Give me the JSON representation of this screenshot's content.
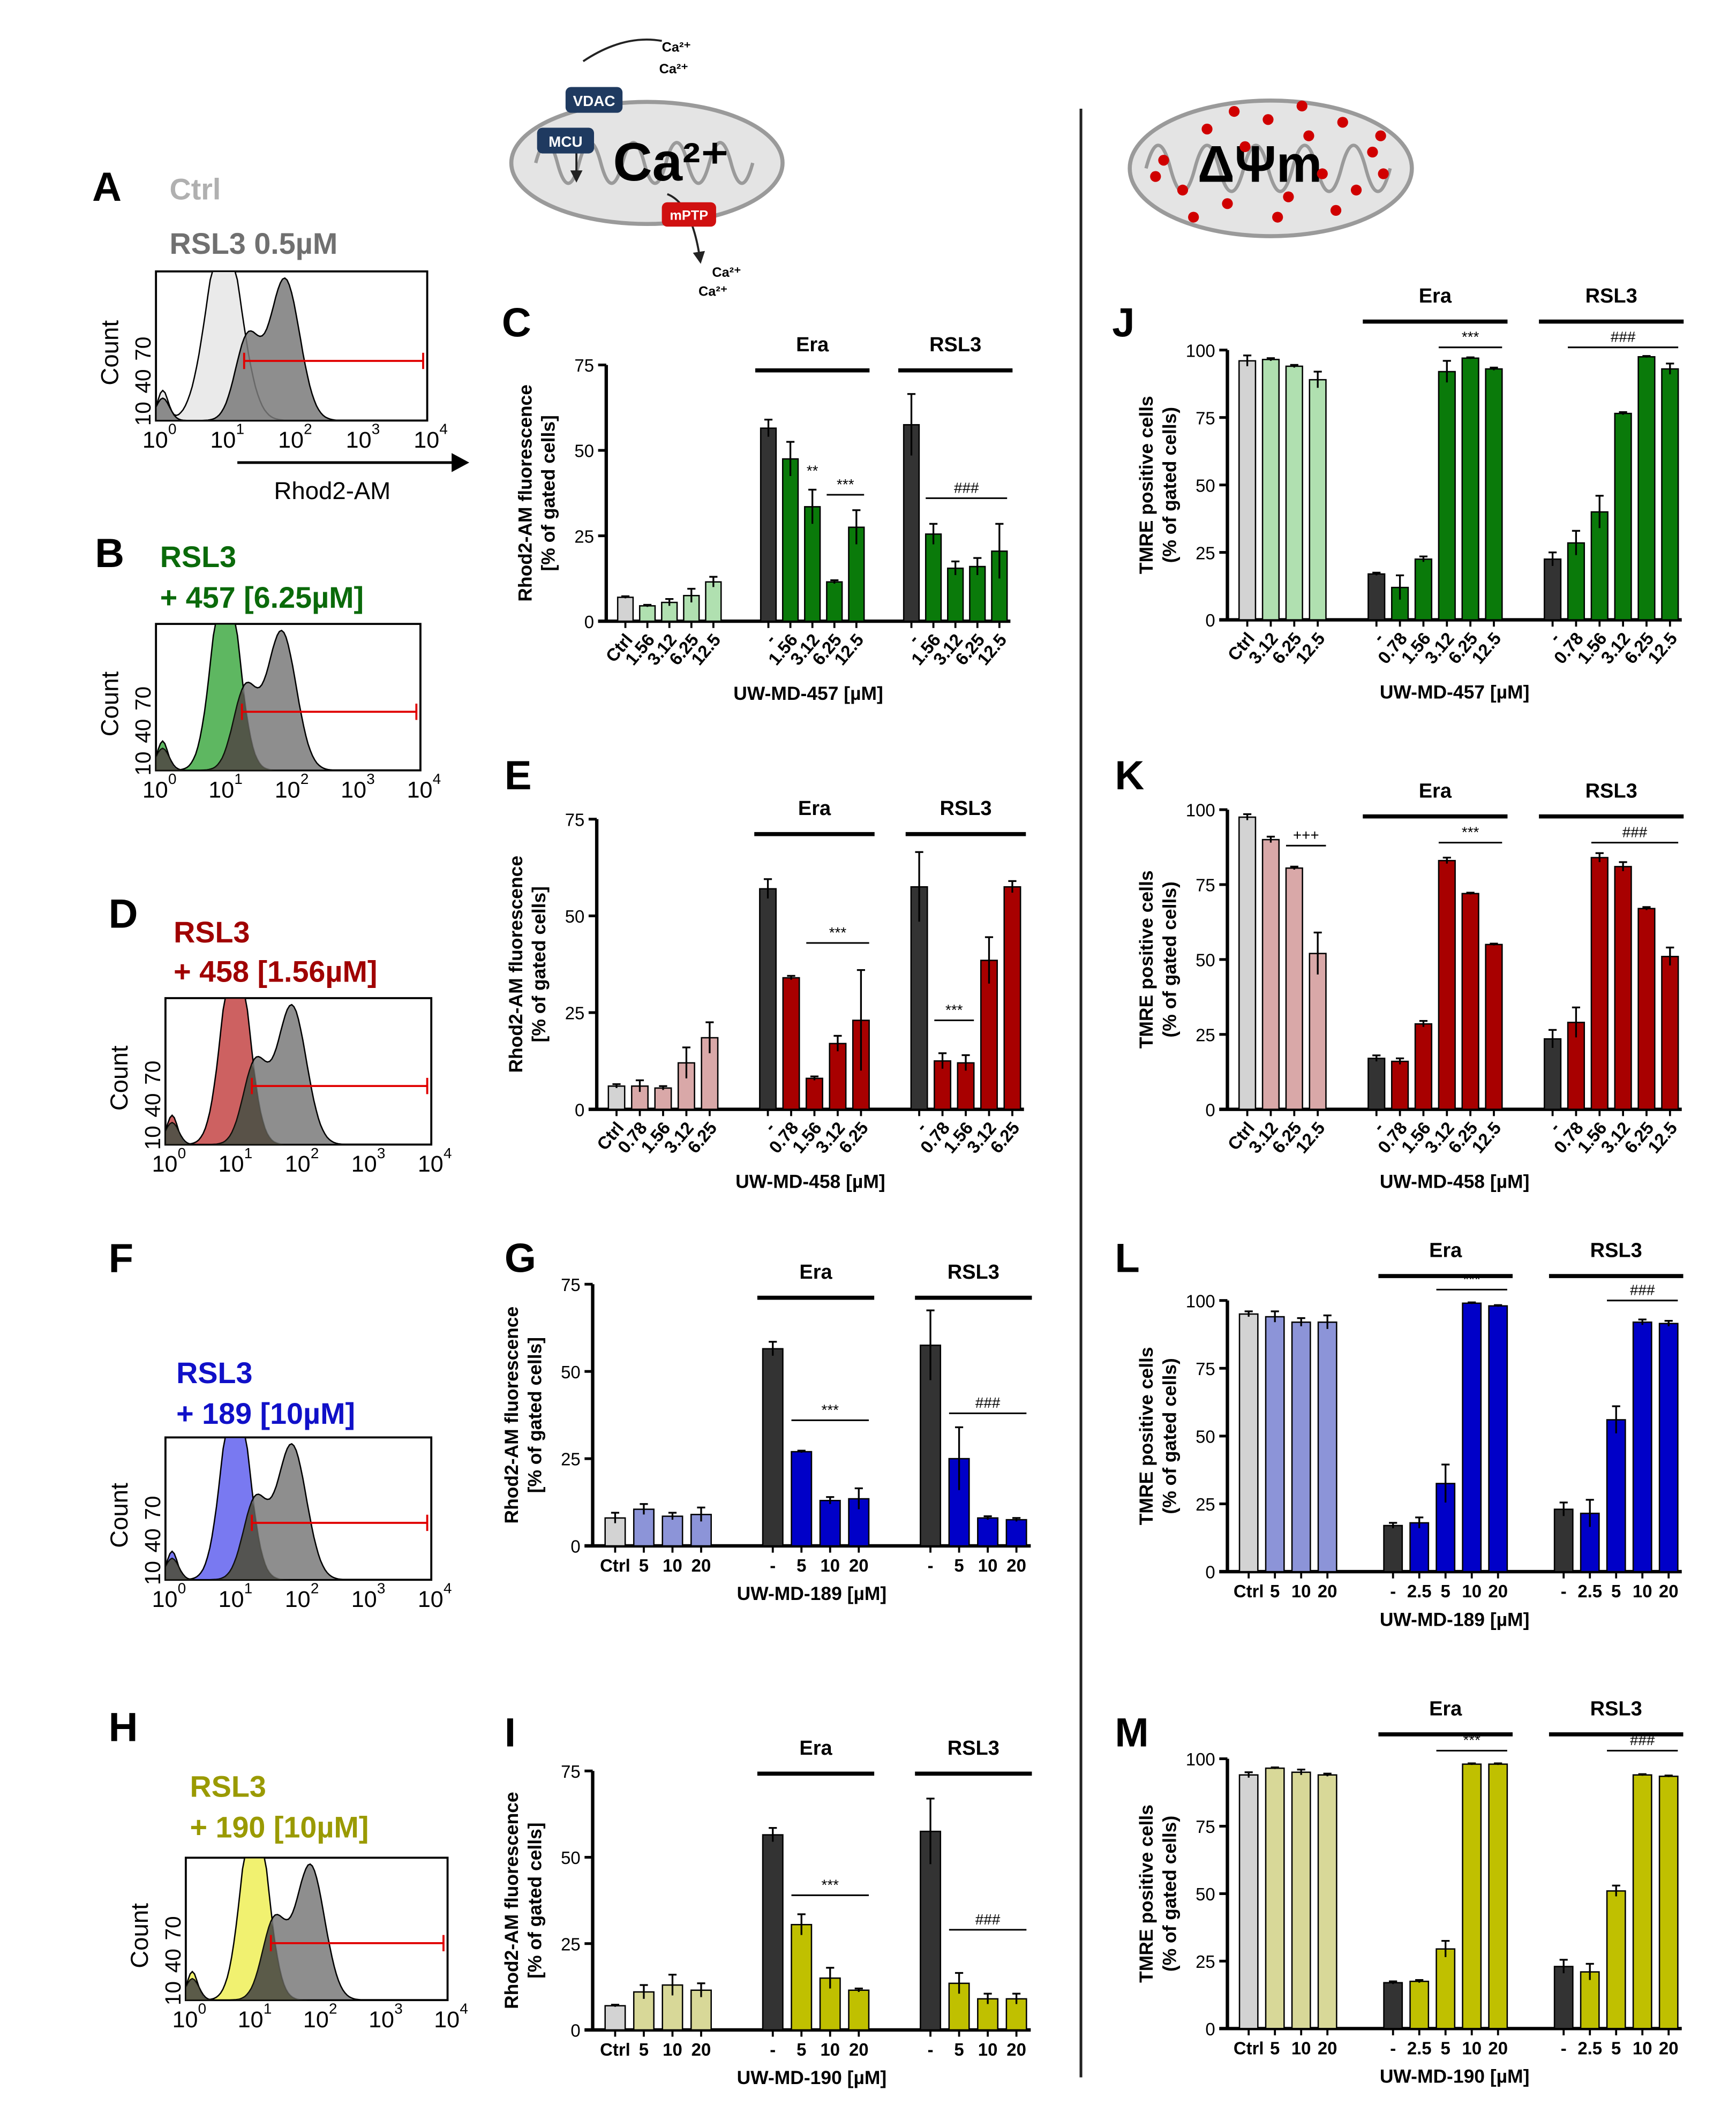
{
  "colors": {
    "ctrl": "#d3d3d3",
    "dark": "#333333",
    "green": "#0a7a0a",
    "green_light": "#b0e0b0",
    "red": "#a80000",
    "red_light": "#d9a8a8",
    "blue": "#0000c8",
    "blue_light": "#8c94d8",
    "olive": "#c0c000",
    "olive_light": "#d8d898",
    "gate": "#e00000",
    "grey_hist": "#7a7a7a"
  },
  "diagram_ca": {
    "vdac": "VDAC",
    "mcu": "MCU",
    "mptp": "mPTP",
    "ca_big": "Ca²⁺",
    "ca_small": [
      "Ca²⁺",
      "Ca²⁺",
      "Ca²⁺",
      "Ca²⁺"
    ]
  },
  "diagram_psi": {
    "label": "ΔΨm"
  },
  "histograms": [
    {
      "panel": "A",
      "title1": "Ctrl",
      "title2": "RSL3 0.5µM",
      "color1": "#b0b0b0",
      "color2": "#707070",
      "fill": "#e8e8e8",
      "ylabel": "Count",
      "yticks": [
        "10",
        "40",
        "70"
      ],
      "xticks": [
        "10",
        "10",
        "10",
        "10",
        "10"
      ],
      "xexp": [
        "0",
        "1",
        "2",
        "3",
        "4"
      ],
      "xaxis": "Rhod2-AM"
    },
    {
      "panel": "B",
      "title1": "RSL3",
      "title2": "+ 457 [6.25µM]",
      "color1": "#0a6a0a",
      "color2": "#0a6a0a",
      "fill": "#4caf50",
      "ylabel": "Count",
      "yticks": [
        "10",
        "40",
        "70"
      ],
      "xticks": [
        "10",
        "10",
        "10",
        "10",
        "10"
      ],
      "xexp": [
        "0",
        "1",
        "2",
        "3",
        "4"
      ]
    },
    {
      "panel": "D",
      "title1": "RSL3",
      "title2": "+ 458 [1.56µM]",
      "color1": "#a00000",
      "color2": "#a00000",
      "fill": "#c85050",
      "ylabel": "Count",
      "yticks": [
        "10",
        "40",
        "70"
      ],
      "xticks": [
        "10",
        "10",
        "10",
        "10",
        "10"
      ],
      "xexp": [
        "0",
        "1",
        "2",
        "3",
        "4"
      ]
    },
    {
      "panel": "F",
      "title1": "RSL3",
      "title2": "+ 189 [10µM]",
      "color1": "#1010c8",
      "color2": "#1010c8",
      "fill": "#6a6af0",
      "ylabel": "Count",
      "yticks": [
        "10",
        "40",
        "70"
      ],
      "xticks": [
        "10",
        "10",
        "10",
        "10",
        "10"
      ],
      "xexp": [
        "0",
        "1",
        "2",
        "3",
        "4"
      ]
    },
    {
      "panel": "H",
      "title1": "RSL3",
      "title2": "+ 190 [10µM]",
      "color1": "#9a9a00",
      "color2": "#9a9a00",
      "fill": "#f0f060",
      "ylabel": "Count",
      "yticks": [
        "10",
        "40",
        "70"
      ],
      "xticks": [
        "10",
        "10",
        "10",
        "10",
        "10"
      ],
      "xexp": [
        "0",
        "1",
        "2",
        "3",
        "4"
      ]
    }
  ],
  "chart_data": [
    {
      "panel": "C",
      "type": "bar",
      "ylabel": [
        "Rhod2-AM fluorescence",
        "[% of gated cells]"
      ],
      "xlabel": "UW-MD-457 [µM]",
      "ylim": [
        0,
        75
      ],
      "yticks": [
        "0",
        "25",
        "50",
        "75"
      ],
      "rotated": true,
      "color": "green",
      "groups": [
        {
          "label": "",
          "categories": [
            "Ctrl",
            "1.56",
            "3.12",
            "6.25",
            "12.5"
          ],
          "values": [
            7,
            4.5,
            5.5,
            7.5,
            11.5
          ],
          "errors": [
            0.3,
            0.3,
            1,
            2,
            1.5
          ]
        },
        {
          "label": "Era",
          "categories": [
            "-",
            "1.56",
            "3.12",
            "6.25",
            "12.5"
          ],
          "values": [
            56.5,
            47.5,
            33.5,
            11.5,
            27.5
          ],
          "errors": [
            2.5,
            5,
            5,
            0.5,
            5
          ]
        },
        {
          "label": "RSL3",
          "categories": [
            "-",
            "1.56",
            "3.12",
            "6.25",
            "12.5"
          ],
          "values": [
            57.5,
            25.5,
            15.5,
            16,
            20.5
          ],
          "errors": [
            9,
            3,
            2,
            2.5,
            8
          ]
        }
      ],
      "annotations": [
        {
          "text": "**",
          "group": 1,
          "from": 2,
          "to": 2,
          "y": 41,
          "line": false
        },
        {
          "text": "***",
          "group": 1,
          "from": 3,
          "to": 4,
          "y": 37,
          "line": true
        },
        {
          "text": "###",
          "group": 2,
          "from": 1,
          "to": 4,
          "y": 36,
          "line": true
        }
      ]
    },
    {
      "panel": "E",
      "type": "bar",
      "ylabel": [
        "Rhod2-AM fluorescence",
        "[% of gated cells]"
      ],
      "xlabel": "UW-MD-458 [µM]",
      "ylim": [
        0,
        75
      ],
      "yticks": [
        "0",
        "25",
        "50",
        "75"
      ],
      "rotated": true,
      "color": "red",
      "groups": [
        {
          "label": "",
          "categories": [
            "Ctrl",
            "0.78",
            "1.56",
            "3.12",
            "6.25"
          ],
          "values": [
            6,
            6,
            5.5,
            12,
            18.5
          ],
          "errors": [
            0.5,
            1.5,
            0.5,
            4,
            4
          ]
        },
        {
          "label": "Era",
          "categories": [
            "-",
            "0.78",
            "1.56",
            "3.12",
            "6.25"
          ],
          "values": [
            57,
            34,
            8,
            17,
            23
          ],
          "errors": [
            2.5,
            0.5,
            0.5,
            2,
            13
          ]
        },
        {
          "label": "RSL3",
          "categories": [
            "-",
            "0.78",
            "1.56",
            "3.12",
            "6.25"
          ],
          "values": [
            57.5,
            12.5,
            12,
            38.5,
            57.5
          ],
          "errors": [
            9,
            2,
            2,
            6,
            1.5
          ]
        }
      ],
      "annotations": [
        {
          "text": "***",
          "group": 1,
          "from": 2,
          "to": 4,
          "y": 43,
          "line": true
        },
        {
          "text": "***",
          "group": 2,
          "from": 1,
          "to": 2,
          "y": 23,
          "line": true
        }
      ]
    },
    {
      "panel": "G",
      "type": "bar",
      "ylabel": [
        "Rhod2-AM fluorescence",
        "[% of gated cells]"
      ],
      "xlabel": "UW-MD-189 [µM]",
      "ylim": [
        0,
        75
      ],
      "yticks": [
        "0",
        "25",
        "50",
        "75"
      ],
      "rotated": false,
      "color": "blue",
      "groups": [
        {
          "label": "",
          "categories": [
            "Ctrl",
            "5",
            "10",
            "20"
          ],
          "values": [
            8,
            10.5,
            8.5,
            9
          ],
          "errors": [
            1.5,
            1.5,
            1,
            2
          ]
        },
        {
          "label": "Era",
          "categories": [
            "-",
            "5",
            "10",
            "20"
          ],
          "values": [
            56.5,
            27,
            13,
            13.5
          ],
          "errors": [
            2,
            0.3,
            1,
            3
          ]
        },
        {
          "label": "RSL3",
          "categories": [
            "-",
            "5",
            "10",
            "20"
          ],
          "values": [
            57.5,
            25,
            8,
            7.5
          ],
          "errors": [
            10,
            9,
            0.5,
            0.5
          ]
        }
      ],
      "annotations": [
        {
          "text": "***",
          "group": 1,
          "from": 1,
          "to": 3,
          "y": 36,
          "line": true
        },
        {
          "text": "###",
          "group": 2,
          "from": 1,
          "to": 3,
          "y": 38,
          "line": true
        }
      ]
    },
    {
      "panel": "I",
      "type": "bar",
      "ylabel": [
        "Rhod2-AM fluorescence",
        "[% of gated cells]"
      ],
      "xlabel": "UW-MD-190 [µM]",
      "ylim": [
        0,
        75
      ],
      "yticks": [
        "0",
        "25",
        "50",
        "75"
      ],
      "rotated": false,
      "color": "olive",
      "groups": [
        {
          "label": "",
          "categories": [
            "Ctrl",
            "5",
            "10",
            "20"
          ],
          "values": [
            7,
            11,
            13,
            11.5
          ],
          "errors": [
            0.3,
            2,
            3,
            2
          ]
        },
        {
          "label": "Era",
          "categories": [
            "-",
            "5",
            "10",
            "20"
          ],
          "values": [
            56.5,
            30.5,
            15,
            11.5
          ],
          "errors": [
            2,
            3,
            3,
            0.5
          ]
        },
        {
          "label": "RSL3",
          "categories": [
            "-",
            "5",
            "10",
            "20"
          ],
          "values": [
            57.5,
            13.5,
            9,
            9
          ],
          "errors": [
            9.5,
            3,
            1.5,
            1.5
          ]
        }
      ],
      "annotations": [
        {
          "text": "***",
          "group": 1,
          "from": 1,
          "to": 3,
          "y": 39,
          "line": true
        },
        {
          "text": "###",
          "group": 2,
          "from": 1,
          "to": 3,
          "y": 29,
          "line": true
        }
      ]
    },
    {
      "panel": "J",
      "type": "bar",
      "ylabel": [
        "TMRE positive cells",
        "(% of gated cells)"
      ],
      "xlabel": "UW-MD-457 [µM]",
      "ylim": [
        0,
        100
      ],
      "yticks": [
        "0",
        "25",
        "50",
        "75",
        "100"
      ],
      "rotated": true,
      "color": "green",
      "groups": [
        {
          "label": "",
          "categories": [
            "Ctrl",
            "3.12",
            "6.25",
            "12.5"
          ],
          "values": [
            96,
            96.5,
            94,
            89
          ],
          "errors": [
            2,
            0.5,
            0.5,
            3
          ]
        },
        {
          "label": "Era",
          "categories": [
            "-",
            "0.78",
            "1.56",
            "3.12",
            "6.25",
            "12.5"
          ],
          "values": [
            17,
            12,
            22.5,
            92,
            97,
            93
          ],
          "errors": [
            0.5,
            4.5,
            1,
            4,
            0.3,
            0.5
          ]
        },
        {
          "label": "RSL3",
          "categories": [
            "-",
            "0.78",
            "1.56",
            "3.12",
            "6.25",
            "12.5"
          ],
          "values": [
            22.5,
            28.5,
            40,
            76.5,
            97.5,
            93
          ],
          "errors": [
            2.5,
            4.5,
            6,
            0.5,
            0.3,
            2
          ]
        }
      ],
      "annotations": [
        {
          "text": "***",
          "group": 1,
          "from": 3,
          "to": 5,
          "y": 101,
          "line": true
        },
        {
          "text": "###",
          "group": 2,
          "from": 1,
          "to": 5,
          "y": 101,
          "line": true
        }
      ]
    },
    {
      "panel": "K",
      "type": "bar",
      "ylabel": [
        "TMRE positive cells",
        "(% of gated cells)"
      ],
      "xlabel": "UW-MD-458 [µM]",
      "ylim": [
        0,
        100
      ],
      "yticks": [
        "0",
        "25",
        "50",
        "75",
        "100"
      ],
      "rotated": true,
      "color": "red",
      "groups": [
        {
          "label": "",
          "categories": [
            "Ctrl",
            "3.12",
            "6.25",
            "12.5"
          ],
          "values": [
            97.5,
            90,
            80.5,
            52
          ],
          "errors": [
            1,
            1,
            0.5,
            7
          ]
        },
        {
          "label": "Era",
          "categories": [
            "-",
            "0.78",
            "1.56",
            "3.12",
            "6.25",
            "12.5"
          ],
          "values": [
            17,
            16,
            28.5,
            83,
            72,
            55
          ],
          "errors": [
            1,
            1,
            1,
            1,
            0.3,
            0.3
          ]
        },
        {
          "label": "RSL3",
          "categories": [
            "-",
            "0.78",
            "1.56",
            "3.12",
            "6.25",
            "12.5"
          ],
          "values": [
            23.5,
            29,
            84,
            81,
            67,
            51
          ],
          "errors": [
            3,
            5,
            1.5,
            1.5,
            0.5,
            3
          ]
        }
      ],
      "annotations": [
        {
          "text": "+++",
          "group": 0,
          "from": 2,
          "to": 3,
          "y": 88,
          "line": true
        },
        {
          "text": "***",
          "group": 1,
          "from": 3,
          "to": 5,
          "y": 89,
          "line": true
        },
        {
          "text": "###",
          "group": 2,
          "from": 2,
          "to": 5,
          "y": 89,
          "line": true
        }
      ]
    },
    {
      "panel": "L",
      "type": "bar",
      "ylabel": [
        "TMRE positive cells",
        "(% of gated cells)"
      ],
      "xlabel": "UW-MD-189 [µM]",
      "ylim": [
        0,
        100
      ],
      "yticks": [
        "0",
        "25",
        "50",
        "75",
        "100"
      ],
      "rotated": false,
      "color": "blue",
      "groups": [
        {
          "label": "",
          "categories": [
            "Ctrl",
            "5",
            "10",
            "20"
          ],
          "values": [
            95,
            94,
            92,
            92
          ],
          "errors": [
            1,
            2,
            1.5,
            2.5
          ]
        },
        {
          "label": "Era",
          "categories": [
            "-",
            "2.5",
            "5",
            "10",
            "20"
          ],
          "values": [
            17,
            18,
            32.5,
            99,
            98
          ],
          "errors": [
            1,
            2,
            7,
            0.3,
            0.3
          ]
        },
        {
          "label": "RSL3",
          "categories": [
            "-",
            "2.5",
            "5",
            "10",
            "20"
          ],
          "values": [
            23,
            21.5,
            56,
            92,
            91.5
          ],
          "errors": [
            2.5,
            5,
            5,
            1,
            1
          ]
        }
      ],
      "annotations": [
        {
          "text": "***",
          "group": 1,
          "from": 2,
          "to": 4,
          "y": 104,
          "line": true
        },
        {
          "text": "###",
          "group": 2,
          "from": 2,
          "to": 4,
          "y": 100,
          "line": true
        }
      ]
    },
    {
      "panel": "M",
      "type": "bar",
      "ylabel": [
        "TMRE positive cells",
        "(% of gated cells)"
      ],
      "xlabel": "UW-MD-190 [µM]",
      "ylim": [
        0,
        100
      ],
      "yticks": [
        "0",
        "25",
        "50",
        "75",
        "100"
      ],
      "rotated": false,
      "color": "olive",
      "groups": [
        {
          "label": "",
          "categories": [
            "Ctrl",
            "5",
            "10",
            "20"
          ],
          "values": [
            94,
            96.5,
            95,
            94
          ],
          "errors": [
            1,
            0.3,
            1,
            0.5
          ]
        },
        {
          "label": "Era",
          "categories": [
            "-",
            "2.5",
            "5",
            "10",
            "20"
          ],
          "values": [
            17,
            17.5,
            29.5,
            98,
            98
          ],
          "errors": [
            0.5,
            0.5,
            3,
            0.3,
            0.3
          ]
        },
        {
          "label": "RSL3",
          "categories": [
            "-",
            "2.5",
            "5",
            "10",
            "20"
          ],
          "values": [
            23,
            21,
            51,
            94,
            93.5
          ],
          "errors": [
            2.5,
            3,
            2,
            0.3,
            0.3
          ]
        }
      ],
      "annotations": [
        {
          "text": "***",
          "group": 1,
          "from": 2,
          "to": 4,
          "y": 103,
          "line": true
        },
        {
          "text": "###",
          "group": 2,
          "from": 2,
          "to": 4,
          "y": 103,
          "line": true
        }
      ]
    }
  ]
}
